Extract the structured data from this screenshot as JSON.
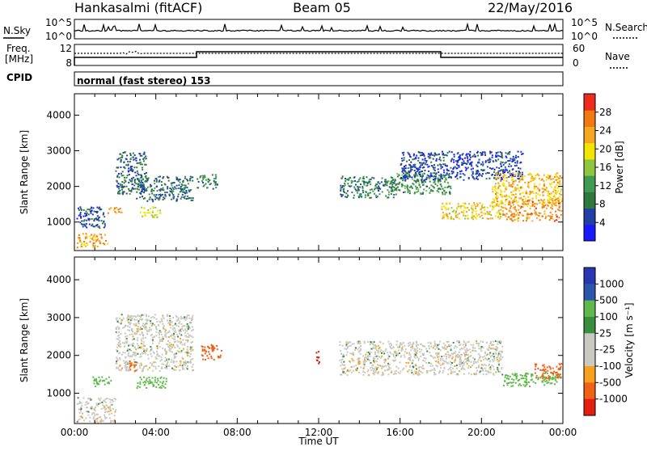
{
  "header": {
    "station": "Hankasalmi (fitACF)",
    "beam": "Beam 05",
    "date": "22/May/2016"
  },
  "strips": {
    "nsky_label": "N.Sky",
    "nsky_ticks": [
      "10^5",
      "10^0"
    ],
    "nsearch_label": "N.Search",
    "nsearch_ticks": [
      "10^5",
      "10^0"
    ],
    "freq_label_1": "Freq.",
    "freq_label_2": "[MHz]",
    "freq_ticks": [
      "12",
      "8"
    ],
    "nave_label": "Nave",
    "nave_ticks": [
      "60",
      "0"
    ],
    "cpid_label": "CPID",
    "cpid_text": "normal (fast stereo) 153"
  },
  "colors": {
    "power_scale": [
      "#1a1aff",
      "#2040a8",
      "#2e7a3c",
      "#3f9b4f",
      "#8ec63f",
      "#f2e600",
      "#f5a623",
      "#f07a10",
      "#ee2a1e"
    ],
    "velocity_scale": [
      "#e51e12",
      "#f06015",
      "#f7a11c",
      "#c9c9c2",
      "#c9c9c2",
      "#3a8f3c",
      "#5fb94b",
      "#2b56ad",
      "#2a37b3"
    ],
    "ground_scatter": "#bdbdbd"
  },
  "chart_data": [
    {
      "type": "heatmap",
      "title": "",
      "xlabel": "Time UT",
      "ylabel": "Slant Range [km]",
      "xlim": [
        "00:00",
        "24:00"
      ],
      "ylim": [
        200,
        4600
      ],
      "x_ticks": [
        "00:00",
        "04:00",
        "08:00",
        "12:00",
        "16:00",
        "20:00",
        "00:00"
      ],
      "y_ticks": [
        "1000",
        "2000",
        "3000",
        "4000"
      ],
      "colorbar_label": "Power [dB]",
      "colorbar_ticks": [
        "4",
        "8",
        "12",
        "16",
        "20",
        "24",
        "28"
      ],
      "colorbar_range": [
        0,
        32
      ],
      "patches": [
        {
          "t0": 0.1,
          "t1": 1.6,
          "r0": 300,
          "r1": 700,
          "v": 23
        },
        {
          "t0": 0.1,
          "t1": 1.5,
          "r0": 850,
          "r1": 1450,
          "v": 6
        },
        {
          "t0": 1.6,
          "t1": 2.3,
          "r0": 1250,
          "r1": 1450,
          "v": 24
        },
        {
          "t0": 2.0,
          "t1": 3.5,
          "r0": 1800,
          "r1": 3000,
          "v": 7
        },
        {
          "t0": 3.0,
          "t1": 5.8,
          "r0": 1600,
          "r1": 2300,
          "v": 8
        },
        {
          "t0": 3.2,
          "t1": 4.2,
          "r0": 1150,
          "r1": 1450,
          "v": 18
        },
        {
          "t0": 6.0,
          "t1": 7.0,
          "r0": 1950,
          "r1": 2350,
          "v": 10
        },
        {
          "t0": 13.0,
          "t1": 15.8,
          "r0": 1700,
          "r1": 2300,
          "v": 9
        },
        {
          "t0": 15.5,
          "t1": 18.5,
          "r0": 1800,
          "r1": 2400,
          "v": 11
        },
        {
          "t0": 16.0,
          "t1": 22.0,
          "r0": 2200,
          "r1": 3000,
          "v": 5
        },
        {
          "t0": 18.0,
          "t1": 21.0,
          "r0": 1100,
          "r1": 1600,
          "v": 20
        },
        {
          "t0": 20.5,
          "t1": 23.9,
          "r0": 1500,
          "r1": 2400,
          "v": 22
        },
        {
          "t0": 21.0,
          "t1": 23.9,
          "r0": 1050,
          "r1": 1650,
          "v": 25
        }
      ]
    },
    {
      "type": "heatmap",
      "title": "",
      "xlabel": "Time UT",
      "ylabel": "Slant Range [km]",
      "xlim": [
        "00:00",
        "24:00"
      ],
      "ylim": [
        200,
        4600
      ],
      "x_ticks": [
        "00:00",
        "04:00",
        "08:00",
        "12:00",
        "16:00",
        "20:00",
        "00:00"
      ],
      "y_ticks": [
        "1000",
        "2000",
        "3000",
        "4000"
      ],
      "colorbar_label": "Velocity [m s⁻¹]",
      "colorbar_ticks": [
        "1000",
        "500",
        "100",
        "25",
        "-25",
        "-100",
        "-500",
        "-1000"
      ],
      "patches": [
        {
          "t0": 0.1,
          "t1": 2.0,
          "r0": 250,
          "r1": 900,
          "v": 0
        },
        {
          "t0": 2.0,
          "t1": 5.8,
          "r0": 1600,
          "r1": 3100,
          "v": 0
        },
        {
          "t0": 0.8,
          "t1": 1.8,
          "r0": 1200,
          "r1": 1450,
          "v": 150
        },
        {
          "t0": 3.0,
          "t1": 4.5,
          "r0": 1150,
          "r1": 1450,
          "v": 200
        },
        {
          "t0": 2.6,
          "t1": 3.0,
          "r0": 1600,
          "r1": 1900,
          "v": -300
        },
        {
          "t0": 6.2,
          "t1": 7.2,
          "r0": 1900,
          "r1": 2300,
          "v": -400
        },
        {
          "t0": 11.8,
          "t1": 12.0,
          "r0": 1800,
          "r1": 2200,
          "v": -600
        },
        {
          "t0": 13.0,
          "t1": 21.0,
          "r0": 1500,
          "r1": 2400,
          "v": 0
        },
        {
          "t0": 21.0,
          "t1": 23.9,
          "r0": 1200,
          "r1": 1550,
          "v": 300
        },
        {
          "t0": 22.6,
          "t1": 23.9,
          "r0": 1400,
          "r1": 1800,
          "v": -350
        }
      ]
    }
  ]
}
